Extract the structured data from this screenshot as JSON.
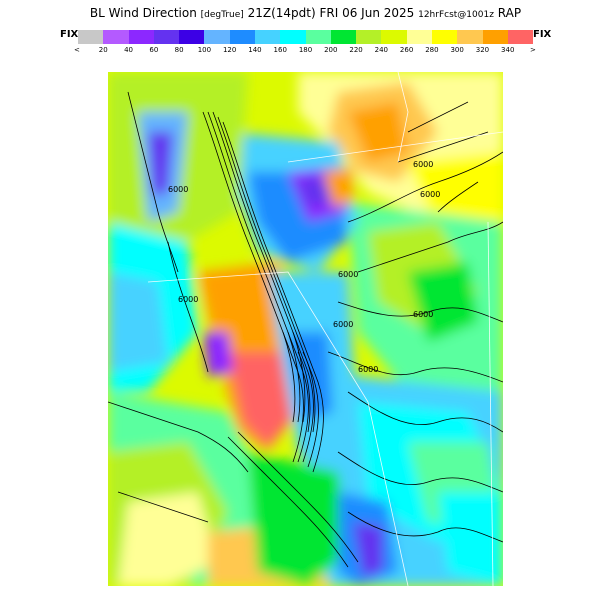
{
  "header": {
    "title_main": "BL Wind Direction",
    "title_units": "[degTrue]",
    "title_time": "21Z(14pdt)",
    "title_date": "FRI 06 Jun 2025",
    "title_fcst": "12hrFcst@1001z",
    "title_model": "RAP"
  },
  "legend": {
    "fix_left": "FIX",
    "fix_right": "FIX",
    "lt": "<",
    "gt": ">",
    "colors": [
      "#c8c8c8",
      "#b45aff",
      "#8c28ff",
      "#6432f0",
      "#3c00e6",
      "#64b4ff",
      "#1e8cff",
      "#46d2ff",
      "#00ffff",
      "#5aff9f",
      "#00e632",
      "#b4f028",
      "#dcfa00",
      "#ffff96",
      "#ffff00",
      "#ffc850",
      "#ffa000",
      "#ff6464"
    ],
    "tick_labels": [
      "20",
      "40",
      "60",
      "80",
      "100",
      "120",
      "140",
      "160",
      "180",
      "200",
      "220",
      "240",
      "260",
      "280",
      "300",
      "320",
      "340"
    ]
  },
  "map": {
    "contour_labels": [
      "6000",
      "6000",
      "6000",
      "6000",
      "6000",
      "6000",
      "6000",
      "6000"
    ]
  }
}
